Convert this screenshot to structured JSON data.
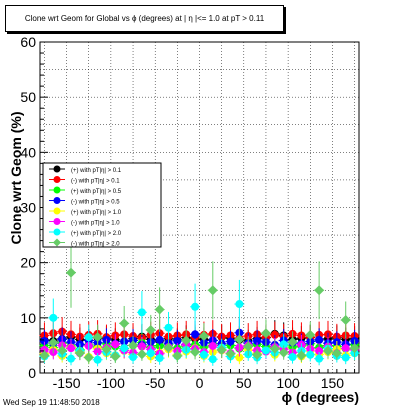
{
  "title": "Clone wrt Geom for Global vs ϕ (degrees) at | η |<= 1.0 at pT > 0.11",
  "timestamp": "Wed Sep 19 11:48:50 2018",
  "chart_data": {
    "type": "scatter",
    "xlabel": "ϕ (degrees)",
    "ylabel": "Clone wrt Geom (%)",
    "xlim": [
      -180,
      180
    ],
    "ylim": [
      0,
      60
    ],
    "x_ticks": [
      -150,
      -100,
      -50,
      0,
      50,
      100,
      150
    ],
    "y_ticks": [
      0,
      10,
      20,
      30,
      40,
      50,
      60
    ],
    "grid": true,
    "legend_position": "left-middle",
    "series": [
      {
        "name": "(+) with pT|η| > 0.1",
        "color": "#000000",
        "marker": "circle",
        "x": [
          -175,
          -165,
          -155,
          -145,
          -135,
          -125,
          -115,
          -105,
          -95,
          -85,
          -75,
          -65,
          -55,
          -45,
          -35,
          -25,
          -15,
          -5,
          5,
          15,
          25,
          35,
          45,
          55,
          65,
          75,
          85,
          95,
          105,
          115,
          125,
          135,
          145,
          155,
          165,
          175
        ],
        "y": [
          6.0,
          5.8,
          6.2,
          6.5,
          6.1,
          5.9,
          6.4,
          6.3,
          6.0,
          5.7,
          6.2,
          6.6,
          6.1,
          5.8,
          6.3,
          6.0,
          6.4,
          6.2,
          6.1,
          5.9,
          6.5,
          6.3,
          6.0,
          5.8,
          6.2,
          6.4,
          7.1,
          6.8,
          6.1,
          6.3,
          6.5,
          6.0,
          6.2,
          6.4,
          6.1,
          6.3
        ]
      },
      {
        "name": "(-) with pT|η| > 0.1",
        "color": "#ff0000",
        "marker": "circle",
        "x": [
          -175,
          -165,
          -155,
          -145,
          -135,
          -125,
          -115,
          -105,
          -95,
          -85,
          -75,
          -65,
          -55,
          -45,
          -35,
          -25,
          -15,
          -5,
          5,
          15,
          25,
          35,
          45,
          55,
          65,
          75,
          85,
          95,
          105,
          115,
          125,
          135,
          145,
          155,
          165,
          175
        ],
        "y": [
          6.8,
          7.2,
          7.5,
          7.0,
          6.6,
          6.9,
          7.1,
          6.5,
          6.8,
          7.0,
          6.7,
          6.4,
          6.9,
          7.2,
          6.6,
          6.8,
          7.0,
          6.5,
          6.9,
          7.1,
          6.6,
          6.8,
          6.3,
          6.7,
          7.0,
          6.5,
          6.9,
          6.6,
          7.1,
          6.8,
          6.4,
          6.9,
          7.0,
          6.6,
          6.8,
          6.7
        ]
      },
      {
        "name": "(+) with pT|η| > 0.5",
        "color": "#00ff00",
        "marker": "circle",
        "x": [
          -175,
          -165,
          -155,
          -145,
          -135,
          -125,
          -115,
          -105,
          -95,
          -85,
          -75,
          -65,
          -55,
          -45,
          -35,
          -25,
          -15,
          -5,
          5,
          15,
          25,
          35,
          45,
          55,
          65,
          75,
          85,
          95,
          105,
          115,
          125,
          135,
          145,
          155,
          165,
          175
        ],
        "y": [
          5.0,
          4.6,
          5.4,
          4.9,
          4.2,
          5.1,
          4.7,
          5.3,
          4.8,
          4.4,
          5.0,
          5.5,
          4.6,
          4.9,
          5.2,
          4.5,
          4.8,
          5.1,
          4.7,
          5.3,
          4.6,
          5.0,
          4.4,
          4.9,
          5.2,
          4.8,
          4.5,
          5.1,
          4.7,
          4.9,
          5.3,
          4.6,
          5.0,
          4.8,
          4.4,
          5.1
        ]
      },
      {
        "name": "(-) with pT|η| > 0.5",
        "color": "#0000ff",
        "marker": "circle",
        "x": [
          -175,
          -165,
          -155,
          -145,
          -135,
          -125,
          -115,
          -105,
          -95,
          -85,
          -75,
          -65,
          -55,
          -45,
          -35,
          -25,
          -15,
          -5,
          5,
          15,
          25,
          35,
          45,
          55,
          65,
          75,
          85,
          95,
          105,
          115,
          125,
          135,
          145,
          155,
          165,
          175
        ],
        "y": [
          5.8,
          5.4,
          6.1,
          5.6,
          5.2,
          5.9,
          5.5,
          6.0,
          5.3,
          5.7,
          5.9,
          5.1,
          5.6,
          6.0,
          5.4,
          5.8,
          5.2,
          7.0,
          5.5,
          5.9,
          5.3,
          5.7,
          7.3,
          5.4,
          5.8,
          5.6,
          5.1,
          5.9,
          5.5,
          5.3,
          5.7,
          6.0,
          5.4,
          5.6,
          5.2,
          5.8
        ]
      },
      {
        "name": "(+) with pT|η| > 1.0",
        "color": "#ffff00",
        "marker": "circle",
        "x": [
          -175,
          -165,
          -155,
          -145,
          -135,
          -125,
          -115,
          -105,
          -95,
          -85,
          -75,
          -65,
          -55,
          -45,
          -35,
          -25,
          -15,
          -5,
          5,
          15,
          25,
          35,
          45,
          55,
          65,
          75,
          85,
          95,
          105,
          115,
          125,
          135,
          145,
          155,
          165,
          175
        ],
        "y": [
          3.5,
          4.2,
          3.1,
          4.6,
          3.8,
          2.9,
          4.4,
          3.6,
          3.2,
          4.0,
          3.4,
          4.8,
          3.0,
          3.7,
          4.3,
          3.3,
          3.9,
          4.5,
          3.1,
          3.8,
          4.1,
          3.5,
          2.8,
          4.2,
          3.6,
          3.9,
          3.3,
          4.4,
          3.7,
          3.0,
          4.0,
          3.4,
          3.8,
          4.3,
          3.2,
          3.6
        ]
      },
      {
        "name": "(-) with pT|η| > 1.0",
        "color": "#ff00ff",
        "marker": "circle",
        "x": [
          -175,
          -165,
          -155,
          -145,
          -135,
          -125,
          -115,
          -105,
          -95,
          -85,
          -75,
          -65,
          -55,
          -45,
          -35,
          -25,
          -15,
          -5,
          5,
          15,
          25,
          35,
          45,
          55,
          65,
          75,
          85,
          95,
          105,
          115,
          125,
          135,
          145,
          155,
          165,
          175
        ],
        "y": [
          4.2,
          3.8,
          5.0,
          4.5,
          3.6,
          4.9,
          3.9,
          4.6,
          5.2,
          4.1,
          3.7,
          4.8,
          4.3,
          3.5,
          4.7,
          4.0,
          5.1,
          4.4,
          3.8,
          4.9,
          4.2,
          3.6,
          4.6,
          5.0,
          4.1,
          3.9,
          4.7,
          4.3,
          3.7,
          5.1,
          4.4,
          4.0,
          4.8,
          3.6,
          4.5,
          4.2
        ]
      },
      {
        "name": "(+) with pT|η| > 2.0",
        "color": "#00ffff",
        "marker": "circle",
        "x": [
          -175,
          -165,
          -155,
          -145,
          -135,
          -125,
          -115,
          -105,
          -95,
          -85,
          -75,
          -65,
          -55,
          -45,
          -35,
          -25,
          -15,
          -5,
          5,
          15,
          25,
          35,
          45,
          55,
          65,
          75,
          85,
          95,
          105,
          115,
          125,
          135,
          145,
          155,
          165,
          175
        ],
        "y": [
          3.0,
          10.0,
          3.5,
          2.6,
          4.0,
          6.5,
          2.4,
          3.8,
          3.2,
          4.5,
          2.9,
          11.0,
          3.6,
          2.7,
          8.2,
          3.1,
          4.2,
          12.0,
          3.3,
          2.5,
          4.6,
          3.0,
          12.5,
          3.4,
          2.8,
          4.1,
          3.7,
          5.2,
          2.9,
          4.0,
          3.3,
          2.6,
          4.4,
          3.1,
          2.8,
          3.6
        ]
      },
      {
        "name": "(-) with pT|η| > 2.0",
        "color": "#66cc66",
        "marker": "diamond",
        "x": [
          -175,
          -165,
          -155,
          -145,
          -135,
          -125,
          -115,
          -105,
          -95,
          -85,
          -75,
          -65,
          -55,
          -45,
          -35,
          -25,
          -15,
          -5,
          5,
          15,
          25,
          35,
          45,
          55,
          65,
          75,
          85,
          95,
          105,
          115,
          125,
          135,
          145,
          155,
          165,
          175
        ],
        "y": [
          3.2,
          5.5,
          4.1,
          18.2,
          3.6,
          2.8,
          6.5,
          4.3,
          3.0,
          9.0,
          5.0,
          3.4,
          7.8,
          11.5,
          4.6,
          3.1,
          5.9,
          3.8,
          6.7,
          15.0,
          4.2,
          3.5,
          6.1,
          4.8,
          3.3,
          7.2,
          4.4,
          3.7,
          5.6,
          3.2,
          6.9,
          15.0,
          4.0,
          3.6,
          9.6,
          4.5
        ]
      }
    ]
  }
}
